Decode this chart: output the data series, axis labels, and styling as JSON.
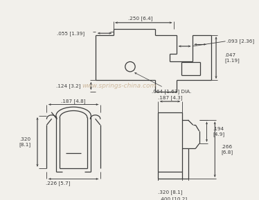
{
  "bg_color": "#f2f0eb",
  "line_color": "#3a3a3a",
  "dim_color": "#3a3a3a",
  "watermark_color": "#c8b090",
  "watermark_text": "www.springs-china.com",
  "fig_w": 3.74,
  "fig_h": 2.9,
  "dpi": 100
}
